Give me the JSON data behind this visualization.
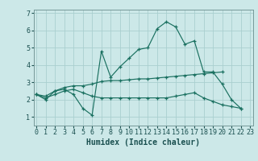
{
  "xlabel": "Humidex (Indice chaleur)",
  "background_color": "#cce8e8",
  "grid_color": "#aacfcf",
  "line_color": "#1a7060",
  "x_values": [
    0,
    1,
    2,
    3,
    4,
    5,
    6,
    7,
    8,
    9,
    10,
    11,
    12,
    13,
    14,
    15,
    16,
    17,
    18,
    19,
    20,
    21,
    22,
    23
  ],
  "series1": [
    2.3,
    2.0,
    2.5,
    2.6,
    2.3,
    1.5,
    1.1,
    4.8,
    3.3,
    3.9,
    4.4,
    4.9,
    5.0,
    6.1,
    6.5,
    6.2,
    5.2,
    5.4,
    3.6,
    3.6,
    2.9,
    2.0,
    1.5,
    null
  ],
  "series2": [
    2.3,
    2.2,
    2.5,
    2.7,
    2.8,
    2.8,
    2.9,
    3.05,
    3.1,
    3.1,
    3.15,
    3.2,
    3.2,
    3.25,
    3.3,
    3.35,
    3.4,
    3.45,
    3.5,
    3.55,
    3.6,
    null,
    null,
    null
  ],
  "series3": [
    2.3,
    2.1,
    2.3,
    2.5,
    2.6,
    2.4,
    2.2,
    2.1,
    2.1,
    2.1,
    2.1,
    2.1,
    2.1,
    2.1,
    2.1,
    2.2,
    2.3,
    2.4,
    2.1,
    1.9,
    1.7,
    1.6,
    1.5,
    null
  ],
  "ylim": [
    0.5,
    7.2
  ],
  "yticks": [
    1,
    2,
    3,
    4,
    5,
    6,
    7
  ],
  "xticks": [
    0,
    1,
    2,
    3,
    4,
    5,
    6,
    7,
    8,
    9,
    10,
    11,
    12,
    13,
    14,
    15,
    16,
    17,
    18,
    19,
    20,
    21,
    22,
    23
  ],
  "xlim": [
    -0.3,
    23.3
  ],
  "font_color": "#1a5050",
  "tick_fontsize": 6,
  "label_fontsize": 7
}
